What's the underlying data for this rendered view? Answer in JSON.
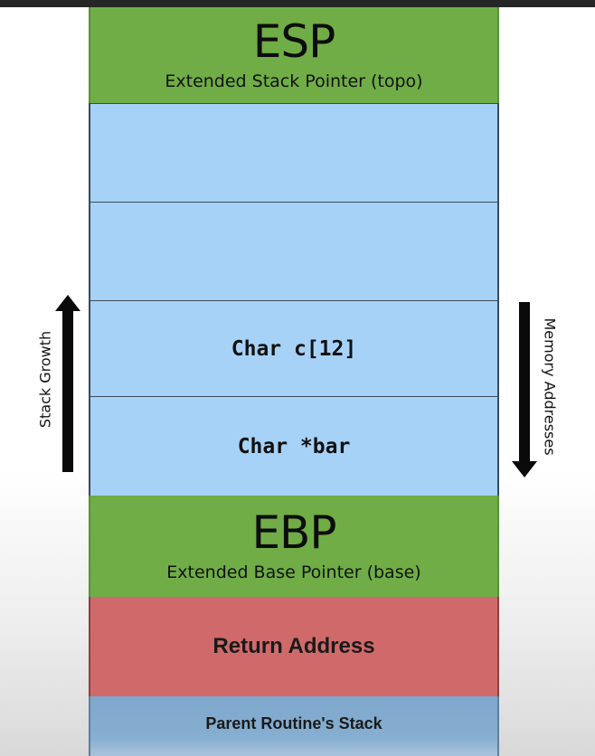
{
  "stack": {
    "esp": {
      "title": "ESP",
      "subtitle": "Extended Stack Pointer (topo)"
    },
    "empty_slot_1": "",
    "empty_slot_2": "",
    "char_array": "Char c[12]",
    "char_pointer": "Char *bar",
    "ebp": {
      "title": "EBP",
      "subtitle": "Extended Base Pointer (base)"
    },
    "return_address": "Return Address",
    "parent_stack": "Parent Routine's Stack"
  },
  "arrows": {
    "left": {
      "label": "Stack Growth",
      "direction": "up"
    },
    "right": {
      "label": "Memory Addresses",
      "direction": "down"
    }
  },
  "colors": {
    "register_green": "#70ad47",
    "slot_blue": "#a6d2f7",
    "return_red": "#d06a6a",
    "parent_steel": "#7ea8cc"
  }
}
